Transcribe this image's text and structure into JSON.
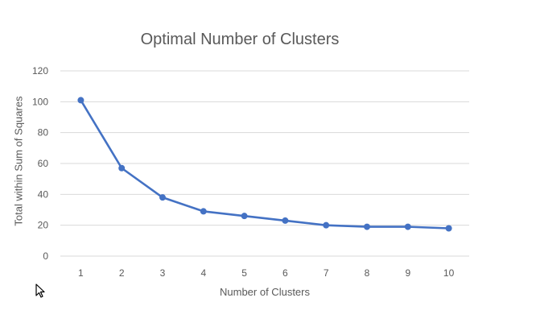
{
  "chart_data": {
    "type": "line",
    "title": "Optimal Number of Clusters",
    "xlabel": "Number of Clusters",
    "ylabel": "Total within Sum of Squares",
    "categories": [
      "1",
      "2",
      "3",
      "4",
      "5",
      "6",
      "7",
      "8",
      "9",
      "10"
    ],
    "series": [
      {
        "name": "Total within Sum of Squares",
        "values": [
          101,
          57,
          38,
          29,
          26,
          23,
          20,
          19,
          19,
          18
        ],
        "color": "#4472C4"
      }
    ],
    "ylim": [
      0,
      120
    ],
    "yticks": [
      0,
      20,
      40,
      60,
      80,
      100,
      120
    ],
    "grid": true,
    "legend": "none",
    "markers": true
  },
  "cursor": {
    "icon": "mouse-pointer-icon"
  }
}
